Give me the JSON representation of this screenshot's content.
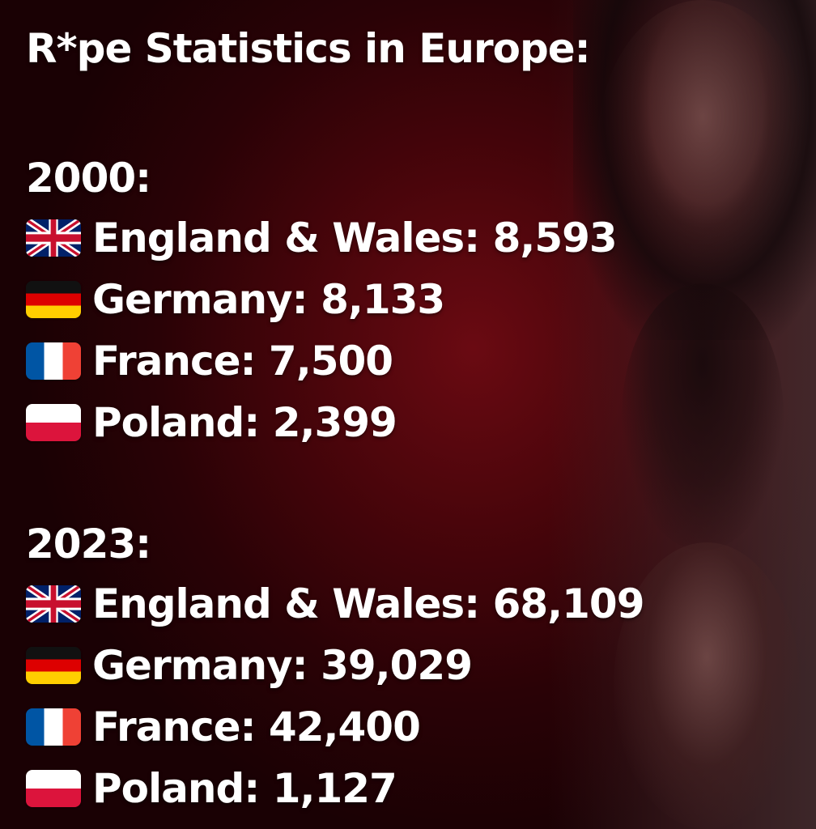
{
  "title": "R*pe Statistics in Europe:",
  "groups": [
    {
      "year": "2000:",
      "rows": [
        {
          "flag": "uk-flag",
          "label": "England & Wales:",
          "value": "8,593"
        },
        {
          "flag": "germany-flag",
          "label": "Germany:",
          "value": "8,133"
        },
        {
          "flag": "france-flag",
          "label": "France:",
          "value": "7,500"
        },
        {
          "flag": "poland-flag",
          "label": "Poland:",
          "value": "2,399"
        }
      ]
    },
    {
      "year": "2023:",
      "rows": [
        {
          "flag": "uk-flag",
          "label": "England & Wales:",
          "value": "68,109"
        },
        {
          "flag": "germany-flag",
          "label": "Germany:",
          "value": "39,029"
        },
        {
          "flag": "france-flag",
          "label": "France:",
          "value": "42,400"
        },
        {
          "flag": "poland-flag",
          "label": "Poland:",
          "value": "1,127"
        }
      ]
    }
  ],
  "colors": {
    "background": "#4a050b",
    "text": "#ffffff"
  }
}
